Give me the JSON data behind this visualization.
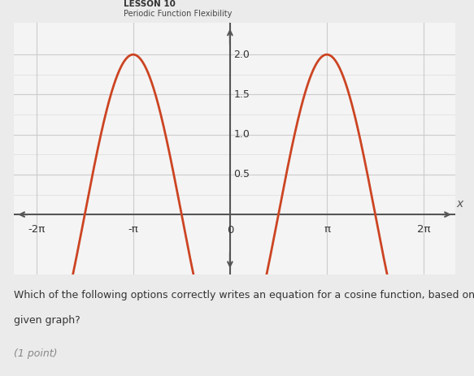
{
  "title_lesson": "LESSON 10",
  "title_subtitle": "Periodic Function Flexibility",
  "question_line1": "Which of the following options correctly writes an equation for a cosine function, based on the",
  "question_line2": "given graph?",
  "point_text": "(1 point)",
  "amplitude": 2.0,
  "xlim": [
    -7.0,
    7.3
  ],
  "ylim_bottom": -0.75,
  "ylim_top": 2.4,
  "yticks": [
    0.5,
    1.0,
    1.5,
    2.0
  ],
  "ytick_labels": [
    "0.5",
    "1.0",
    "1.5",
    "2.0"
  ],
  "xtick_positions": [
    -6.283185307,
    -3.141592653,
    0,
    3.141592653,
    6.283185307
  ],
  "xtick_labels": [
    "-2π",
    "-π",
    "0",
    "π",
    "2π"
  ],
  "grid_color": "#cccccc",
  "curve_color": "#cc4422",
  "axis_color": "#555555",
  "bg_color": "#ebebeb",
  "plot_bg_color": "#f4f4f4",
  "header_line_color": "#4ec4dc",
  "text_color": "#333333",
  "header_text_color": "#666666"
}
